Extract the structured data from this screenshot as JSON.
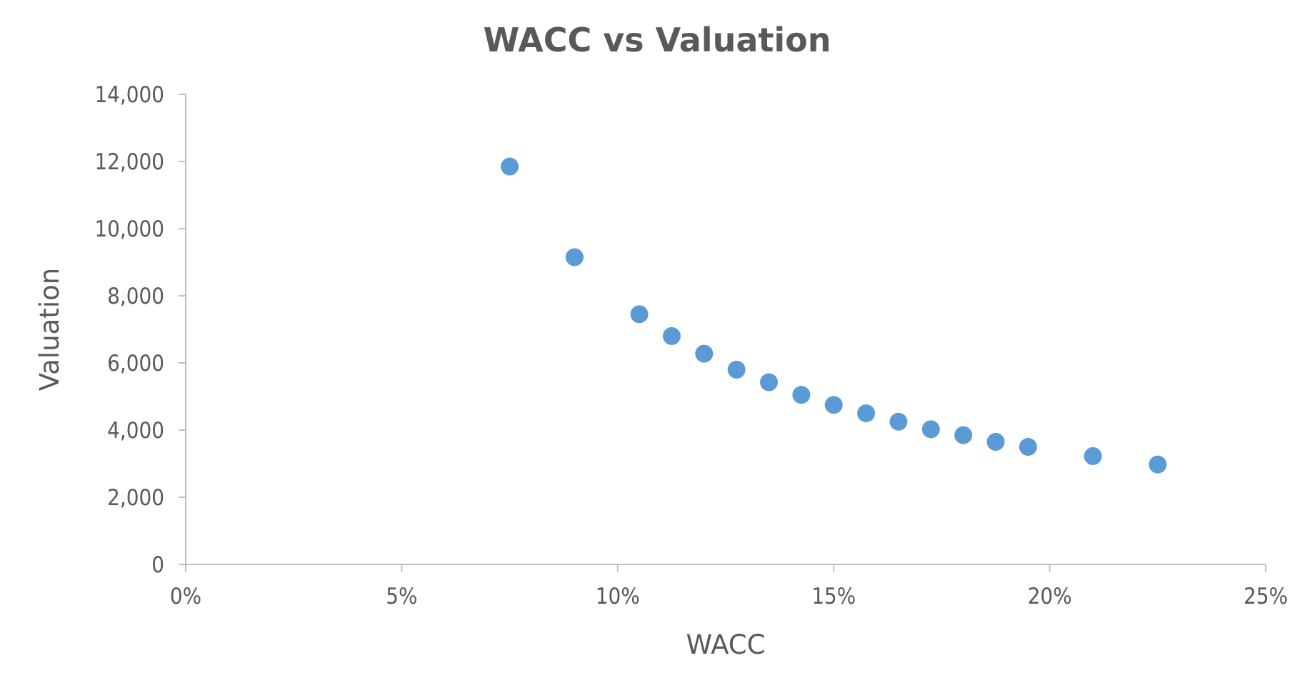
{
  "chart_data": {
    "type": "scatter",
    "title": "WACC vs Valuation",
    "xlabel": "WACC",
    "ylabel": "Valuation",
    "xlim": [
      0,
      0.25
    ],
    "ylim": [
      0,
      14000
    ],
    "x_ticks": [
      0,
      0.05,
      0.1,
      0.15,
      0.2,
      0.25
    ],
    "x_tick_labels": [
      "0%",
      "5%",
      "10%",
      "15%",
      "20%",
      "25%"
    ],
    "y_ticks": [
      0,
      2000,
      4000,
      6000,
      8000,
      10000,
      12000,
      14000
    ],
    "y_tick_labels": [
      "0",
      "2,000",
      "4,000",
      "6,000",
      "8,000",
      "10,000",
      "12,000",
      "14,000"
    ],
    "grid": false,
    "legend": "none",
    "marker_color": "#5B9BD5",
    "series": [
      {
        "x": [
          0.075,
          0.09,
          0.105,
          0.1125,
          0.12,
          0.1275,
          0.135,
          0.1425,
          0.15,
          0.1575,
          0.165,
          0.1725,
          0.18,
          0.1875,
          0.195,
          0.21,
          0.225
        ],
        "y": [
          11850,
          9150,
          7450,
          6800,
          6275,
          5800,
          5425,
          5050,
          4750,
          4500,
          4250,
          4025,
          3850,
          3650,
          3500,
          3225,
          2975
        ]
      }
    ]
  }
}
